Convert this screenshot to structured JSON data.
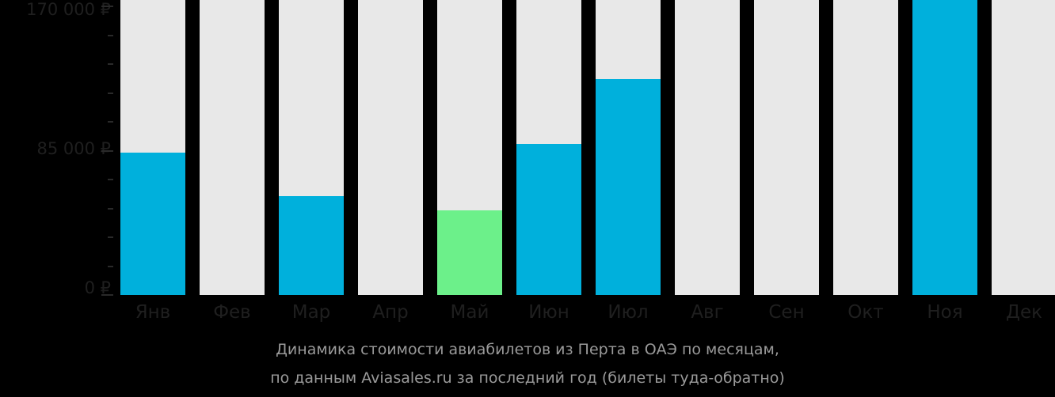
{
  "chart_data": {
    "type": "bar",
    "title": "Динамика стоимости авиабилетов из Перта в ОАЭ по месяцам, по данным Aviasales.ru за последний год (билеты туда-обратно)",
    "xlabel": "",
    "ylabel": "",
    "ylim": [
      0,
      170000
    ],
    "yticks": [
      0,
      85000,
      170000
    ],
    "ytick_labels": [
      "0 ₽",
      "85 000 ₽",
      "170 000 ₽"
    ],
    "categories": [
      "Янв",
      "Фев",
      "Мар",
      "Апр",
      "Май",
      "Июн",
      "Июл",
      "Авг",
      "Сен",
      "Окт",
      "Ноя",
      "Дек"
    ],
    "values": [
      84000,
      null,
      58000,
      null,
      50000,
      89000,
      127000,
      null,
      null,
      null,
      170000,
      null
    ],
    "bar_colors": [
      "#00b0dc",
      "#e8e8e8",
      "#00b0dc",
      "#e8e8e8",
      "#6cf08a",
      "#00b0dc",
      "#00b0dc",
      "#e8e8e8",
      "#e8e8e8",
      "#e8e8e8",
      "#00b0dc",
      "#e8e8e8"
    ],
    "highlight": {
      "category": "Май",
      "meaning": "cheapest month",
      "color": "#6cf08a"
    },
    "grid": false,
    "legend": null
  },
  "axis": {
    "labels": [
      "170 000 ₽",
      "85 000 ₽",
      "0 ₽"
    ]
  },
  "caption": {
    "line1": "Динамика стоимости авиабилетов из Перта в ОАЭ по месяцам,",
    "line2": "по данным Aviasales.ru за последний год (билеты туда-обратно)"
  },
  "colors": {
    "background": "#000000",
    "bar_empty": "#e8e8e8",
    "bar_price": "#00b0dc",
    "bar_cheapest": "#6cf08a",
    "axis_text": "#1f1f1f",
    "caption_text": "#9a9a9a"
  }
}
